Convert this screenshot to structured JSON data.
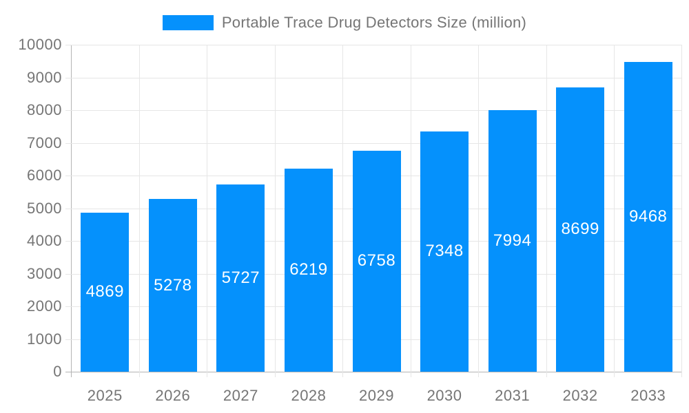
{
  "legend": {
    "label": "Portable Trace Drug Detectors Size (million)"
  },
  "colors": {
    "bar": "#0591fc",
    "grid_line": "#e6e6e6",
    "axis_line": "#b3b3b3",
    "tick_label": "#757575",
    "legend_label": "#757575",
    "bar_value_label": "#ffffff",
    "background": "#ffffff"
  },
  "chart_data": {
    "type": "bar",
    "title": "Portable Trace Drug Detectors Size (million)",
    "categories": [
      "2025",
      "2026",
      "2027",
      "2028",
      "2029",
      "2030",
      "2031",
      "2032",
      "2033"
    ],
    "series": [
      {
        "name": "Portable Trace Drug Detectors Size (million)",
        "values": [
          4869,
          5278,
          5727,
          6219,
          6758,
          7348,
          7994,
          8699,
          9468
        ]
      }
    ],
    "xlabel": "",
    "ylabel": "",
    "ylim": [
      0,
      10000
    ],
    "ytick_step": 1000,
    "grid": true,
    "legend_position": "top",
    "value_labels": "inside-center"
  }
}
